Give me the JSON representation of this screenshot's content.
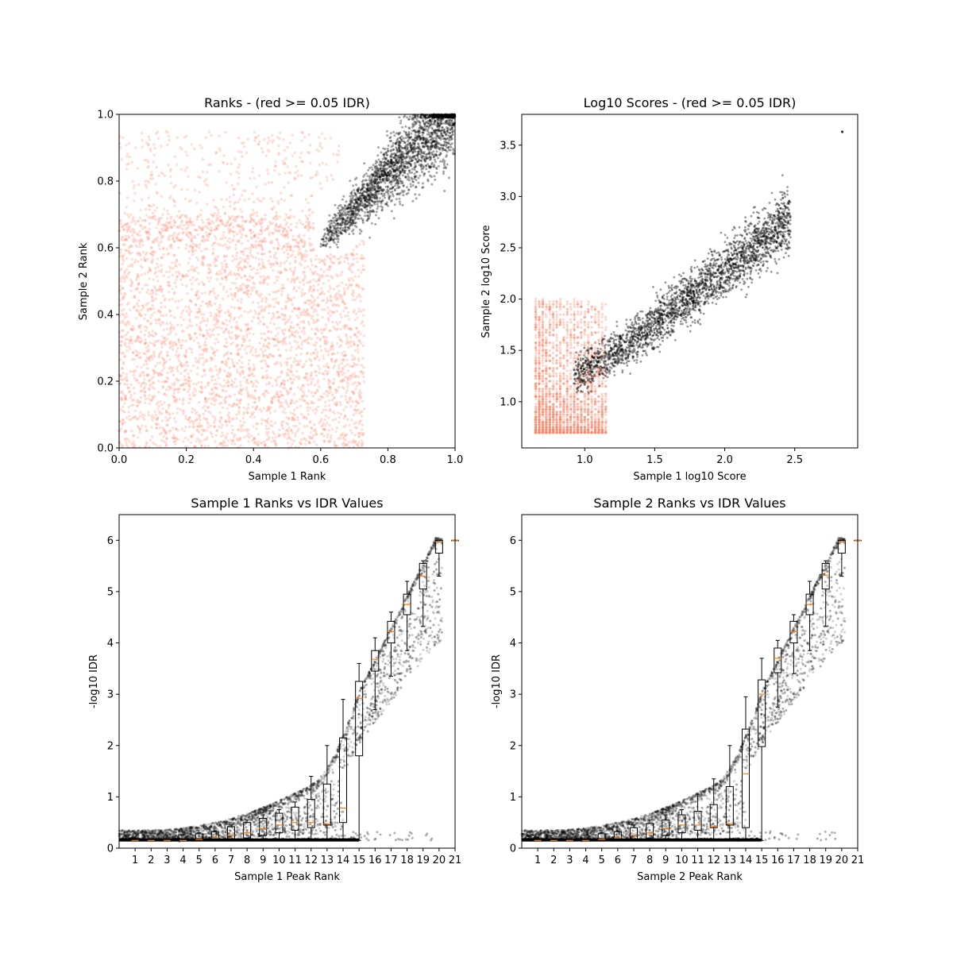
{
  "colors": {
    "pass": "#000000",
    "fail": "#fa8a6e",
    "median": "#ff7f0e",
    "box": "#000000"
  },
  "chart_data": [
    {
      "type": "scatter",
      "title": "Ranks - (red >= 0.05 IDR)",
      "xlabel": "Sample 1 Rank",
      "ylabel": "Sample 2 Rank",
      "xlim": [
        0,
        1
      ],
      "ylim": [
        0,
        1
      ],
      "xticks": [
        "0.0",
        "0.2",
        "0.4",
        "0.6",
        "0.8",
        "1.0"
      ],
      "yticks": [
        "0.0",
        "0.2",
        "0.4",
        "0.6",
        "0.8",
        "1.0"
      ],
      "series": [
        {
          "color": "#fa8a6e",
          "region": "ranks below ~0.7 on both samples (IDR >= 0.05)"
        },
        {
          "color": "#000000",
          "region": "diagonal band from ~(0.6,0.6) to (1,1) (IDR < 0.05)"
        }
      ]
    },
    {
      "type": "scatter",
      "title": "Log10 Scores - (red >= 0.05 IDR)",
      "xlabel": "Sample 1 log10 Score",
      "ylabel": "Sample 2 log10 Score",
      "xlim": [
        0.55,
        2.95
      ],
      "ylim": [
        0.55,
        3.8
      ],
      "xticks": [
        "1.0",
        "1.5",
        "2.0",
        "2.5"
      ],
      "yticks": [
        "1.0",
        "1.5",
        "2.0",
        "2.5",
        "3.0",
        "3.5"
      ],
      "series": [
        {
          "color": "#fa8a6e",
          "region": "low scores 0.65-1.15 (IDR >= 0.05)"
        },
        {
          "color": "#000000",
          "region": "diagonal from (0.9,1.1) to (2.55,3.05) (IDR < 0.05)"
        }
      ]
    },
    {
      "type": "scatter",
      "title": "Sample 1 Ranks vs IDR Values",
      "xlabel": "Sample 1 Peak Rank",
      "ylabel": "-log10 IDR",
      "xlim": [
        0,
        21
      ],
      "ylim": [
        0,
        6.5
      ],
      "xticks": [
        "1",
        "2",
        "3",
        "4",
        "5",
        "6",
        "7",
        "8",
        "9",
        "10",
        "11",
        "12",
        "13",
        "14",
        "15",
        "16",
        "17",
        "18",
        "19",
        "20",
        "21"
      ],
      "yticks": [
        "0",
        "1",
        "2",
        "3",
        "4",
        "5",
        "6"
      ],
      "boxplot": {
        "positions": [
          1,
          2,
          3,
          4,
          5,
          6,
          7,
          8,
          9,
          10,
          11,
          12,
          13,
          14,
          15,
          16,
          17,
          18,
          19,
          20,
          21
        ],
        "q1": [
          0.15,
          0.15,
          0.15,
          0.15,
          0.15,
          0.15,
          0.15,
          0.2,
          0.25,
          0.3,
          0.35,
          0.4,
          0.45,
          0.5,
          1.8,
          3.45,
          4.0,
          4.55,
          5.05,
          5.75,
          6.0
        ],
        "median": [
          0.15,
          0.15,
          0.15,
          0.15,
          0.17,
          0.2,
          0.25,
          0.3,
          0.38,
          0.45,
          0.5,
          0.5,
          0.47,
          0.78,
          2.92,
          3.68,
          4.22,
          4.75,
          5.3,
          5.97,
          6.0
        ],
        "q3": [
          0.17,
          0.17,
          0.17,
          0.17,
          0.28,
          0.32,
          0.42,
          0.5,
          0.58,
          0.68,
          0.8,
          0.95,
          1.25,
          2.15,
          3.25,
          3.85,
          4.42,
          4.95,
          5.55,
          6.0,
          6.0
        ],
        "wlow": [
          0.15,
          0.15,
          0.15,
          0.15,
          0.15,
          0.15,
          0.15,
          0.15,
          0.15,
          0.15,
          0.15,
          0.15,
          0.15,
          0.15,
          0.15,
          2.7,
          3.35,
          3.85,
          4.32,
          5.3,
          6.0
        ],
        "whigh": [
          0.17,
          0.17,
          0.17,
          0.17,
          0.3,
          0.34,
          0.45,
          0.55,
          0.65,
          0.75,
          0.9,
          1.4,
          2.0,
          2.9,
          3.6,
          4.1,
          4.6,
          5.2,
          5.6,
          6.0,
          6.0
        ]
      }
    },
    {
      "type": "scatter",
      "title": "Sample 2 Ranks vs IDR Values",
      "xlabel": "Sample 2 Peak Rank",
      "ylabel": "-log10 IDR",
      "xlim": [
        0,
        21
      ],
      "ylim": [
        0,
        6.5
      ],
      "xticks": [
        "1",
        "2",
        "3",
        "4",
        "5",
        "6",
        "7",
        "8",
        "9",
        "10",
        "11",
        "12",
        "13",
        "14",
        "15",
        "16",
        "17",
        "18",
        "19",
        "20",
        "21"
      ],
      "yticks": [
        "0",
        "1",
        "2",
        "3",
        "4",
        "5",
        "6"
      ],
      "boxplot": {
        "positions": [
          1,
          2,
          3,
          4,
          5,
          6,
          7,
          8,
          9,
          10,
          11,
          12,
          13,
          14,
          15,
          16,
          17,
          18,
          19,
          20,
          21
        ],
        "q1": [
          0.15,
          0.15,
          0.15,
          0.15,
          0.15,
          0.15,
          0.15,
          0.2,
          0.25,
          0.3,
          0.35,
          0.4,
          0.45,
          0.4,
          1.98,
          3.42,
          4.0,
          4.55,
          5.05,
          5.75,
          6.0
        ],
        "median": [
          0.15,
          0.15,
          0.15,
          0.15,
          0.17,
          0.2,
          0.25,
          0.3,
          0.38,
          0.45,
          0.45,
          0.42,
          0.48,
          1.45,
          3.0,
          3.7,
          4.22,
          4.75,
          5.32,
          5.97,
          6.0
        ],
        "q3": [
          0.17,
          0.17,
          0.17,
          0.17,
          0.28,
          0.32,
          0.4,
          0.48,
          0.55,
          0.65,
          0.72,
          0.85,
          1.2,
          2.32,
          3.28,
          3.9,
          4.42,
          4.95,
          5.55,
          6.0,
          6.0
        ],
        "wlow": [
          0.15,
          0.15,
          0.15,
          0.15,
          0.15,
          0.15,
          0.15,
          0.15,
          0.15,
          0.15,
          0.15,
          0.15,
          0.15,
          0.15,
          0.15,
          2.75,
          3.4,
          3.85,
          4.32,
          5.3,
          6.0
        ],
        "whigh": [
          0.17,
          0.17,
          0.17,
          0.17,
          0.3,
          0.34,
          0.45,
          0.55,
          0.65,
          0.75,
          1.05,
          1.35,
          2.0,
          2.95,
          3.7,
          4.05,
          4.55,
          5.2,
          5.6,
          6.0,
          6.0
        ]
      }
    }
  ]
}
